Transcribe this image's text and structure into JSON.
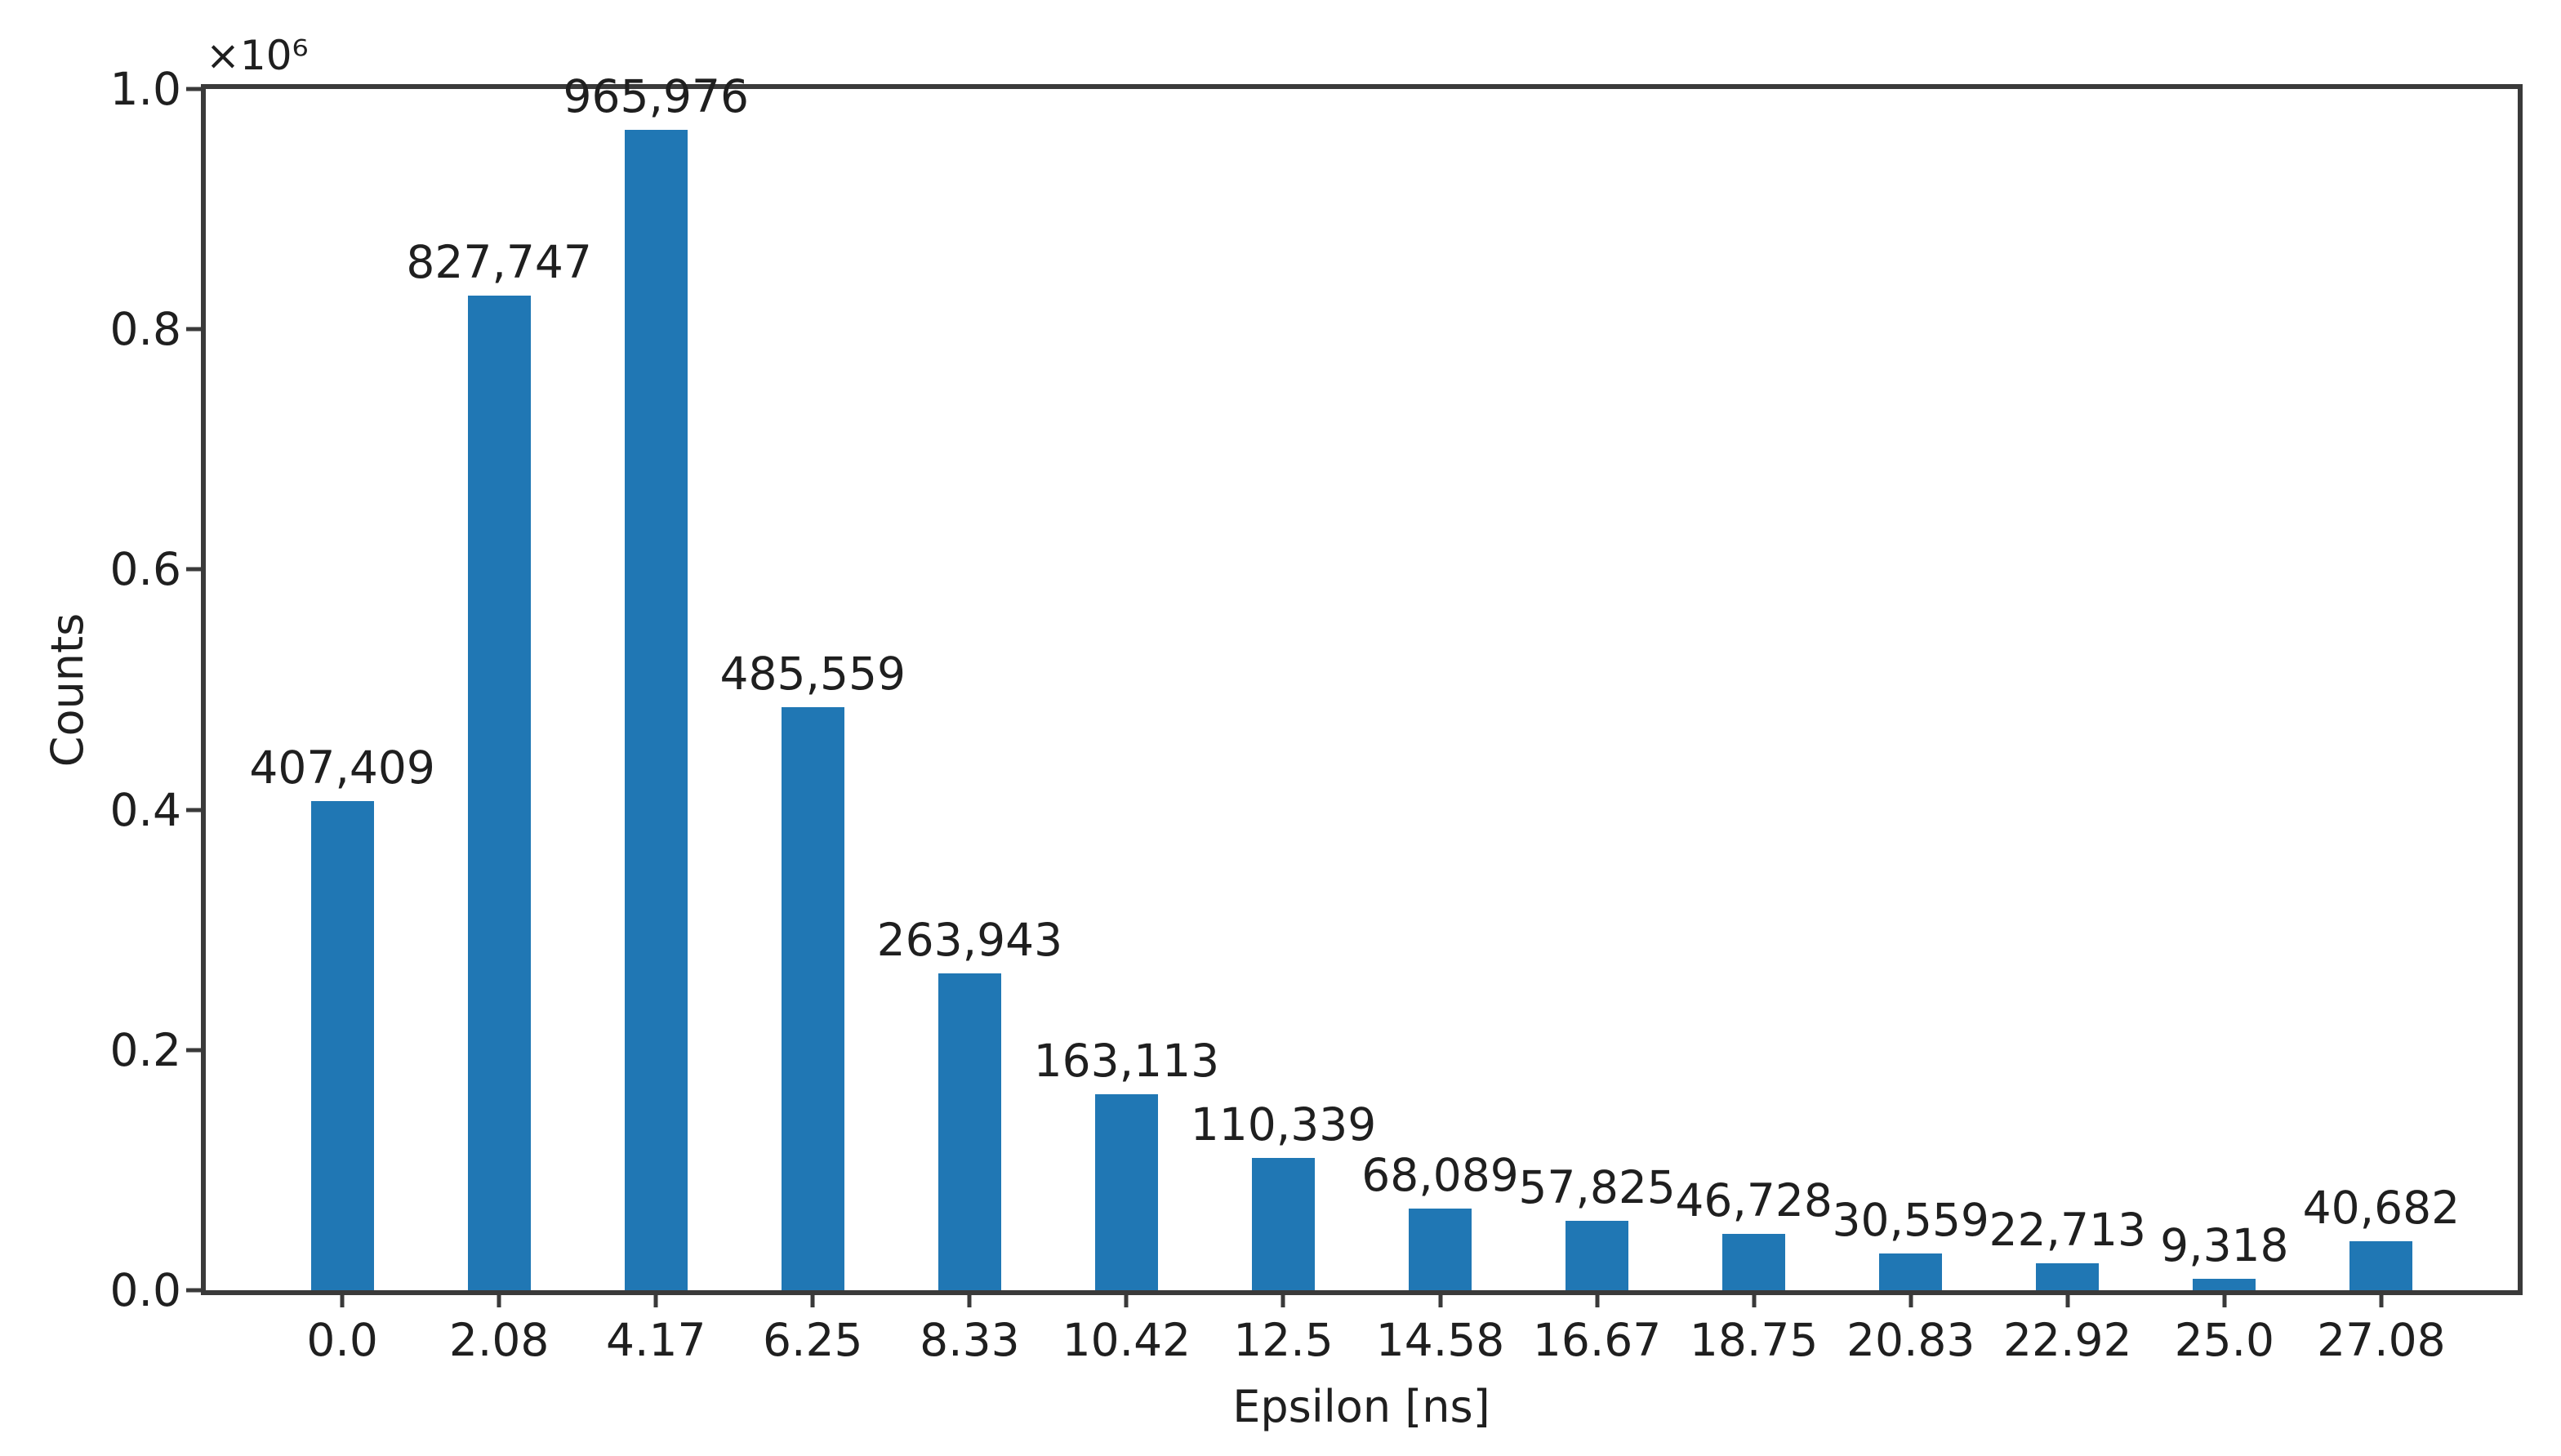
{
  "chart_data": {
    "type": "bar",
    "title": "",
    "xlabel": "Epsilon [ns]",
    "ylabel": "Counts",
    "y_axis_offset_text": "×10⁶",
    "categories": [
      "0.0",
      "2.08",
      "4.17",
      "6.25",
      "8.33",
      "10.42",
      "12.5",
      "14.58",
      "16.67",
      "18.75",
      "20.83",
      "22.92",
      "25.0",
      "27.08"
    ],
    "values": [
      407409,
      827747,
      965976,
      485559,
      263943,
      163113,
      110339,
      68089,
      57825,
      46728,
      30559,
      22713,
      9318,
      40682
    ],
    "value_labels": [
      "407,409",
      "827,747",
      "965,976",
      "485,559",
      "263,943",
      "163,113",
      "110,339",
      "68,089",
      "57,825",
      "46,728",
      "30,559",
      "22,713",
      "9,318",
      "40,682"
    ],
    "ylim": [
      0,
      1000000
    ],
    "yticks": [
      {
        "value": 0,
        "label": "0.0"
      },
      {
        "value": 200000,
        "label": "0.2"
      },
      {
        "value": 400000,
        "label": "0.4"
      },
      {
        "value": 600000,
        "label": "0.6"
      },
      {
        "value": 800000,
        "label": "0.8"
      },
      {
        "value": 1000000,
        "label": "1.0"
      }
    ],
    "grid": false,
    "legend": null,
    "colors": {
      "bar": "#2077b4",
      "axis": "#3a3a3a",
      "text": "#1f1f1f",
      "background": "#ffffff"
    }
  }
}
